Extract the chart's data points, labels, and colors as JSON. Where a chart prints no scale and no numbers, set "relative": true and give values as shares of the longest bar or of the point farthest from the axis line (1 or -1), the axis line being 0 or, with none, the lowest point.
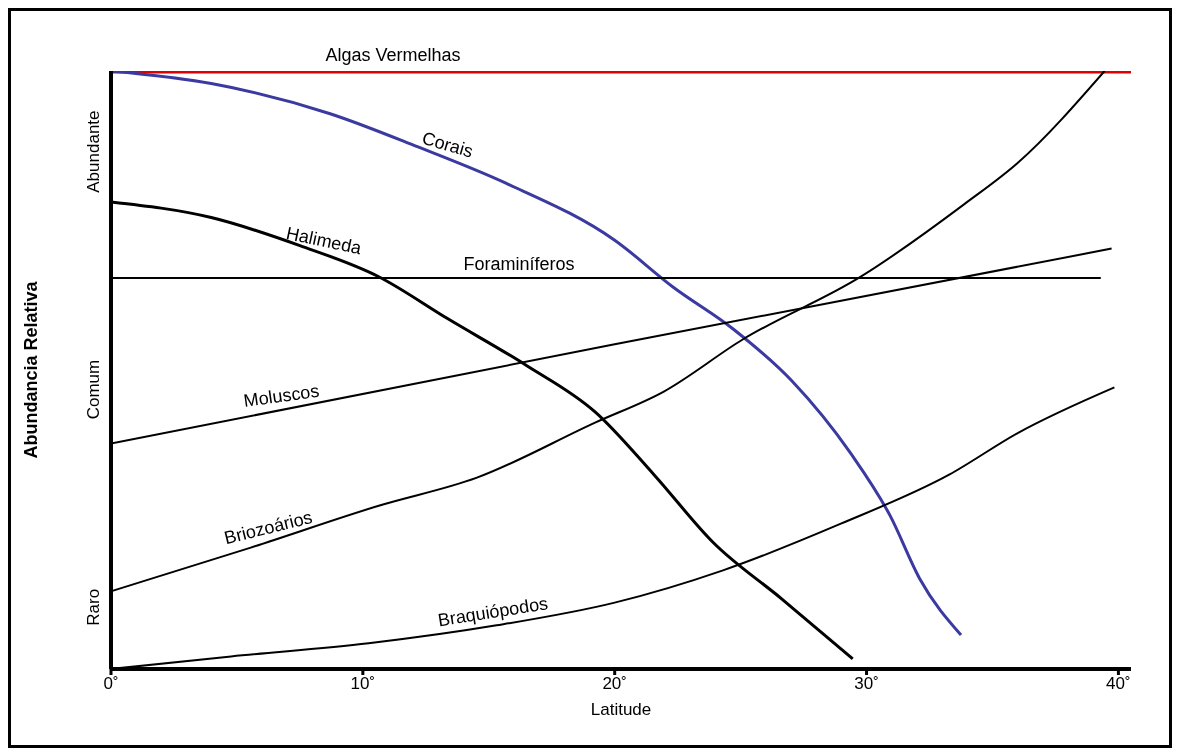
{
  "chart_data": {
    "type": "line",
    "relative": true,
    "xlabel": "Latitude",
    "ylabel": "Abundancia Relativa",
    "xlim": [
      0,
      40.5
    ],
    "xticks": [
      {
        "value": 0,
        "label": "0˚"
      },
      {
        "value": 10,
        "label": "10˚"
      },
      {
        "value": 20,
        "label": "20˚"
      },
      {
        "value": 30,
        "label": "30˚"
      },
      {
        "value": 40,
        "label": "40˚"
      }
    ],
    "annotations": [
      "Raro",
      "Comum",
      "Abundante"
    ],
    "grid": false,
    "legend": false,
    "marker": "none",
    "line_style": "solid",
    "series": [
      {
        "name": "Algas Vermelhas",
        "color": "#e00000",
        "x": [
          0,
          40.5
        ],
        "values": [
          1,
          1
        ]
      },
      {
        "name": "Corais",
        "color": "#3a3aa0",
        "x": [
          0,
          3.98,
          8.67,
          12.19,
          15.7,
          20.0,
          22.34,
          24.69,
          27.03,
          29.38,
          30.94,
          32.11,
          33.75
        ],
        "values": [
          1,
          0.979,
          0.929,
          0.873,
          0.812,
          0.717,
          0.638,
          0.569,
          0.482,
          0.36,
          0.256,
          0.151,
          0.057
        ]
      },
      {
        "name": "Halimeda",
        "color": "#000000",
        "x": [
          0,
          3.98,
          7.5,
          10.63,
          13.36,
          16.48,
          19.22,
          21.56,
          23.9,
          26.64,
          29.45
        ],
        "values": [
          0.781,
          0.755,
          0.708,
          0.656,
          0.586,
          0.508,
          0.43,
          0.325,
          0.212,
          0.117,
          0.017
        ]
      },
      {
        "name": "Foraminíferos",
        "color": "#000000",
        "x": [
          0,
          39.3
        ],
        "values": [
          0.654,
          0.654
        ]
      },
      {
        "name": "Moluscos",
        "color": "#000000",
        "x": [
          0,
          20,
          39.73
        ],
        "values": [
          0.377,
          0.543,
          0.703
        ]
      },
      {
        "name": "Briozoários",
        "color": "#000000",
        "x": [
          0,
          5.55,
          10.63,
          14.53,
          19.22,
          21.95,
          25.08,
          29.77,
          33.87,
          36.02,
          39.45
        ],
        "values": [
          0.13,
          0.203,
          0.273,
          0.32,
          0.412,
          0.464,
          0.551,
          0.656,
          0.777,
          0.847,
          1
        ]
      },
      {
        "name": "Braquiópodos",
        "color": "#000000",
        "x": [
          0,
          4.77,
          10.23,
          15.31,
          20,
          24.3,
          28.98,
          33.28,
          36.02,
          39.84
        ],
        "values": [
          0,
          0.021,
          0.043,
          0.073,
          0.111,
          0.165,
          0.243,
          0.325,
          0.395,
          0.471
        ]
      }
    ]
  }
}
